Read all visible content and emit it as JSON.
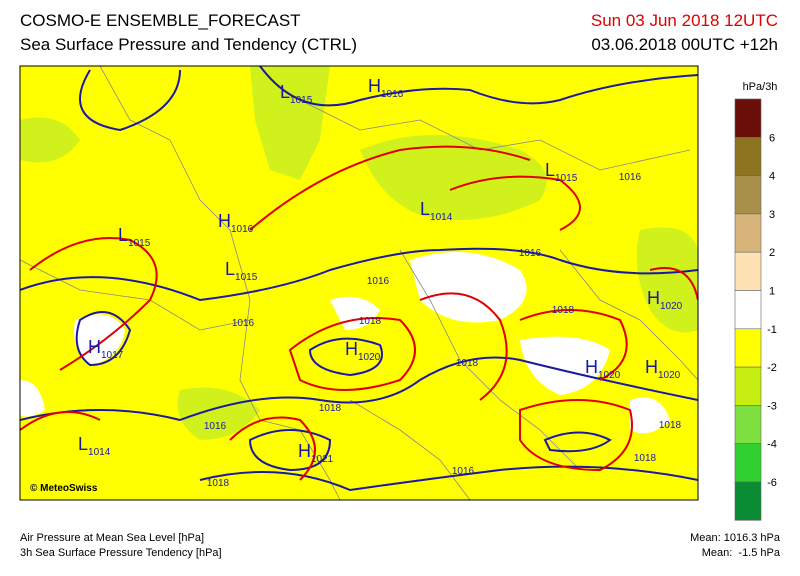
{
  "header": {
    "title": "COSMO-E ENSEMBLE_FORECAST",
    "subtitle": "Sea Surface Pressure and Tendency (CTRL)",
    "valid_time": "Sun 03 Jun 2018 12UTC",
    "run": "03.06.2018 00UTC +12h"
  },
  "legend": {
    "unit": "hPa/3h",
    "labels": [
      "6",
      "4",
      "3",
      "2",
      "1",
      "-1",
      "-2",
      "-3",
      "-4",
      "-6"
    ]
  },
  "map": {
    "centers": [
      {
        "letter": "L",
        "value": "1015"
      },
      {
        "letter": "H",
        "value": "1016"
      },
      {
        "letter": "L",
        "value": "1015"
      },
      {
        "letter": "L",
        "value": "1015"
      },
      {
        "letter": "H",
        "value": "1016"
      },
      {
        "letter": "L",
        "value": "1014"
      },
      {
        "letter": "L",
        "value": "1015"
      },
      {
        "letter": "H",
        "value": "1017"
      },
      {
        "letter": "H",
        "value": "1020"
      },
      {
        "letter": "H",
        "value": "1020"
      },
      {
        "letter": "H",
        "value": "1020"
      },
      {
        "letter": "H",
        "value": "1020"
      },
      {
        "letter": "H",
        "value": "1021"
      },
      {
        "letter": "L",
        "value": "1014"
      }
    ],
    "isobar_labels": [
      "1016",
      "1016",
      "1016",
      "1016",
      "1018",
      "1018",
      "1018",
      "1018",
      "1016",
      "1018",
      "1018",
      "1016",
      "1018"
    ],
    "copyright": "© MeteoSwiss"
  },
  "footer": {
    "left": [
      "Air Pressure at Mean Sea Level [hPa]",
      "3h Sea Surface Pressure Tendency [hPa]"
    ],
    "right": [
      "Mean: 1016.3 hPa",
      "Mean:  -1.5 hPa"
    ]
  }
}
